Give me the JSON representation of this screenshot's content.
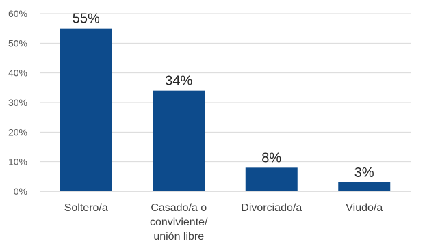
{
  "chart_data": {
    "type": "bar",
    "title": "",
    "xlabel": "",
    "ylabel": "",
    "categories": [
      [
        "Soltero/a"
      ],
      [
        "Casado/a o",
        "conviviente/",
        "unión libre"
      ],
      [
        "Divorciado/a"
      ],
      [
        "Viudo/a"
      ]
    ],
    "values": [
      55,
      34,
      8,
      3
    ],
    "data_labels": [
      "55%",
      "34%",
      "8%",
      "3%"
    ],
    "ylim": [
      0,
      60
    ],
    "yticks": [
      0,
      10,
      20,
      30,
      40,
      50,
      60
    ],
    "ytick_labels": [
      "0%",
      "10%",
      "20%",
      "30%",
      "40%",
      "50%",
      "60%"
    ],
    "grid": true,
    "legend": "none",
    "bar_color": "#0d4b8c"
  }
}
